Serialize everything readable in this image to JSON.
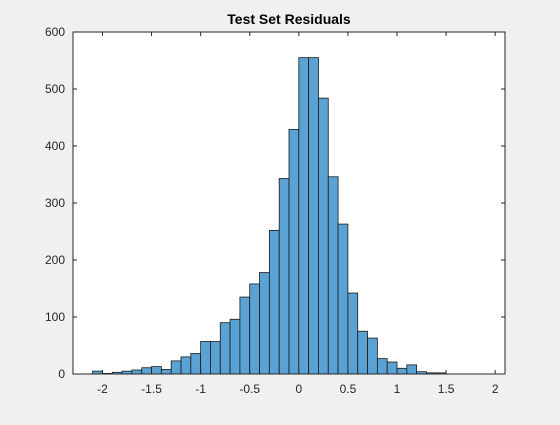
{
  "colors": {
    "figure_background": "#f0f0f0",
    "axes_background": "#ffffff",
    "bar_fill": "#5aa2d4",
    "bar_edge": "#1a1a1a",
    "axis_color": "#262626"
  },
  "chart_data": {
    "type": "bar",
    "title": "Test Set Residuals",
    "xlabel": "",
    "ylabel": "",
    "xlim": [
      -2.3,
      2.1
    ],
    "ylim": [
      0,
      600
    ],
    "grid": false,
    "xticks": [
      -2,
      -1.5,
      -1,
      -0.5,
      0,
      0.5,
      1,
      1.5,
      2
    ],
    "xtick_labels": [
      "-2",
      "-1.5",
      "-1",
      "-0.5",
      "0",
      "0.5",
      "1",
      "1.5",
      "2"
    ],
    "yticks": [
      0,
      100,
      200,
      300,
      400,
      500,
      600
    ],
    "ytick_labels": [
      "0",
      "100",
      "200",
      "300",
      "400",
      "500",
      "600"
    ],
    "bin_width": 0.1,
    "bin_left_edges": [
      -2.1,
      -2.0,
      -1.9,
      -1.8,
      -1.7,
      -1.6,
      -1.5,
      -1.4,
      -1.3,
      -1.2,
      -1.1,
      -1.0,
      -0.9,
      -0.8,
      -0.7,
      -0.6,
      -0.5,
      -0.4,
      -0.3,
      -0.2,
      -0.1,
      0.0,
      0.1,
      0.2,
      0.3,
      0.4,
      0.5,
      0.6,
      0.7,
      0.8,
      0.9,
      1.0,
      1.1,
      1.2,
      1.3,
      1.4
    ],
    "values": [
      5,
      1,
      3,
      5,
      7,
      11,
      13,
      8,
      23,
      30,
      36,
      57,
      57,
      90,
      96,
      135,
      158,
      178,
      252,
      343,
      429,
      555,
      555,
      484,
      346,
      263,
      142,
      75,
      63,
      27,
      21,
      10,
      16,
      4,
      2,
      2
    ]
  }
}
